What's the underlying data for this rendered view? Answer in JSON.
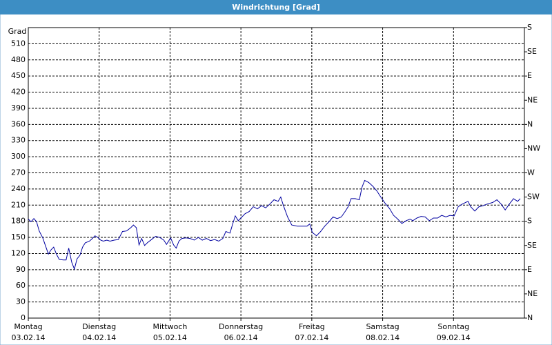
{
  "chart_data": {
    "type": "line",
    "title": "Windrichtung [Grad]",
    "y_label": "Grad",
    "xlim": [
      0,
      168
    ],
    "xticks": [
      {
        "value": 0,
        "label": "Montag"
      },
      {
        "value": 24,
        "label": "Dienstag"
      },
      {
        "value": 48,
        "label": "Mittwoch"
      },
      {
        "value": 72,
        "label": "Donnerstag"
      },
      {
        "value": 96,
        "label": "Freitag"
      },
      {
        "value": 120,
        "label": "Samstag"
      },
      {
        "value": 144,
        "label": "Sonntag"
      }
    ],
    "xtick_dates": [
      "03.02.14",
      "04.02.14",
      "05.02.14",
      "06.02.14",
      "07.02.14",
      "08.02.14",
      "09.02.14"
    ],
    "ylim": [
      0,
      540
    ],
    "yticks": [
      0,
      30,
      60,
      90,
      120,
      150,
      180,
      210,
      240,
      270,
      300,
      330,
      360,
      390,
      420,
      450,
      480,
      510
    ],
    "y2lim": [
      0,
      540
    ],
    "y2ticks": [
      {
        "value": 0,
        "label": "N"
      },
      {
        "value": 45,
        "label": "NE"
      },
      {
        "value": 90,
        "label": "E"
      },
      {
        "value": 135,
        "label": "SE"
      },
      {
        "value": 180,
        "label": "S"
      },
      {
        "value": 225,
        "label": "SW"
      },
      {
        "value": 270,
        "label": "W"
      },
      {
        "value": 315,
        "label": "NW"
      },
      {
        "value": 360,
        "label": "N"
      },
      {
        "value": 405,
        "label": "NE"
      },
      {
        "value": 450,
        "label": "E"
      },
      {
        "value": 495,
        "label": "SE"
      },
      {
        "value": 540,
        "label": "S"
      }
    ],
    "grid": true,
    "series": [
      {
        "color": "#0000a0",
        "x": [
          0,
          0.9,
          1.9,
          2.8,
          3.7,
          4.9,
          5.8,
          6.8,
          7.7,
          8.6,
          9.5,
          10.5,
          11.9,
          12.8,
          13.7,
          14.7,
          15.6,
          16.5,
          17.5,
          18.4,
          19.3,
          20.7,
          21.7,
          22.6,
          23.5,
          24.5,
          25.4,
          26.6,
          27.7,
          29.1,
          30.5,
          31.9,
          33.3,
          34.7,
          35.6,
          36.6,
          37.5,
          38.4,
          39.4,
          40.3,
          41.7,
          43.1,
          44.5,
          45.9,
          46.8,
          48.2,
          49.2,
          50.1,
          51.0,
          52.0,
          53.4,
          54.8,
          56.2,
          57.6,
          58.9,
          60.3,
          61.7,
          63.1,
          64.5,
          65.9,
          66.9,
          68.3,
          69.2,
          70.1,
          71.1,
          72.0,
          73.4,
          74.8,
          76.2,
          77.6,
          79.0,
          80.4,
          81.8,
          83.2,
          84.6,
          85.5,
          86.4,
          87.8,
          89.2,
          91.1,
          93.0,
          94.4,
          95.3,
          96.2,
          97.6,
          99.0,
          100.4,
          101.8,
          103.2,
          104.6,
          106.0,
          107.4,
          108.3,
          109.3,
          110.7,
          112.1,
          113.0,
          113.9,
          115.3,
          116.7,
          118.1,
          119.5,
          120.9,
          122.3,
          123.7,
          125.1,
          126.5,
          127.9,
          129.3,
          130.2,
          131.6,
          133.0,
          134.4,
          135.8,
          137.2,
          138.6,
          140.0,
          141.4,
          142.8,
          144.2,
          145.6,
          147.0,
          148.9,
          149.8,
          151.2,
          152.6,
          154.0,
          155.4,
          157.3,
          158.7,
          160.1,
          161.5,
          162.9,
          164.3,
          165.7,
          166.6
        ],
        "values": [
          184,
          179,
          185,
          179,
          162,
          149,
          135,
          119,
          127,
          132,
          119,
          109,
          108,
          108,
          130,
          104,
          91,
          110,
          117,
          132,
          140,
          143,
          148,
          153,
          150,
          145,
          143,
          145,
          143,
          145,
          146,
          161,
          162,
          168,
          173,
          168,
          136,
          148,
          135,
          140,
          146,
          152,
          150,
          145,
          137,
          149,
          136,
          130,
          143,
          148,
          149,
          148,
          145,
          150,
          145,
          148,
          144,
          146,
          143,
          148,
          161,
          158,
          175,
          190,
          181,
          186,
          194,
          198,
          207,
          203,
          209,
          205,
          212,
          220,
          217,
          225,
          209,
          188,
          173,
          171,
          171,
          171,
          175,
          159,
          153,
          161,
          171,
          179,
          188,
          185,
          188,
          199,
          207,
          222,
          222,
          220,
          243,
          256,
          252,
          245,
          236,
          224,
          213,
          204,
          191,
          184,
          176,
          181,
          184,
          181,
          186,
          189,
          188,
          181,
          186,
          186,
          191,
          188,
          191,
          190,
          207,
          212,
          217,
          207,
          199,
          207,
          209,
          212,
          215,
          220,
          212,
          201,
          212,
          222,
          217,
          222
        ]
      }
    ]
  }
}
